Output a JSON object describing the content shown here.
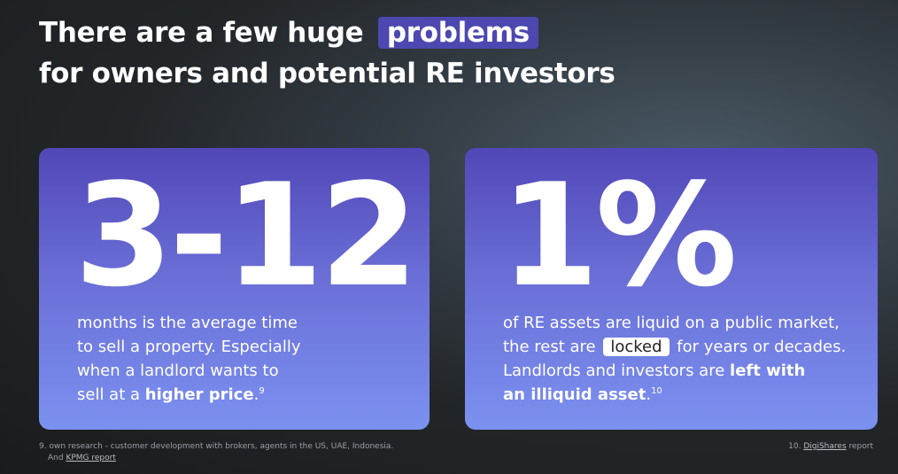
{
  "title": {
    "line1_pre": "There are a few huge",
    "highlight": "problems",
    "line2": "for owners and potential RE investors"
  },
  "cards": [
    {
      "stat": "3-12",
      "lines": [
        "months is the average time",
        "to sell a property. Especially",
        "when a landlord wants to"
      ],
      "last_pre": "sell at a ",
      "last_bold": "higher price",
      "last_post": ".",
      "ref": "9"
    },
    {
      "stat": "1%",
      "line1": "of RE assets are liquid on a public market,",
      "line2_pre": "the rest are",
      "line2_badge": "locked",
      "line2_post": "for years or decades.",
      "line3_pre": "Landlords and investors are ",
      "line3_bold": "left with",
      "line4_bold": "an illiquid asset",
      "line4_post": ".",
      "ref": "10"
    }
  ],
  "footnotes": {
    "left_line1": "9. own research - customer development with brokers, agents in the US, UAE, Indonesia.",
    "left_line2_pre": "And ",
    "left_line2_link": "KPMG report",
    "right_pre": "10. ",
    "right_link": "DigiShares",
    "right_post": " report"
  }
}
